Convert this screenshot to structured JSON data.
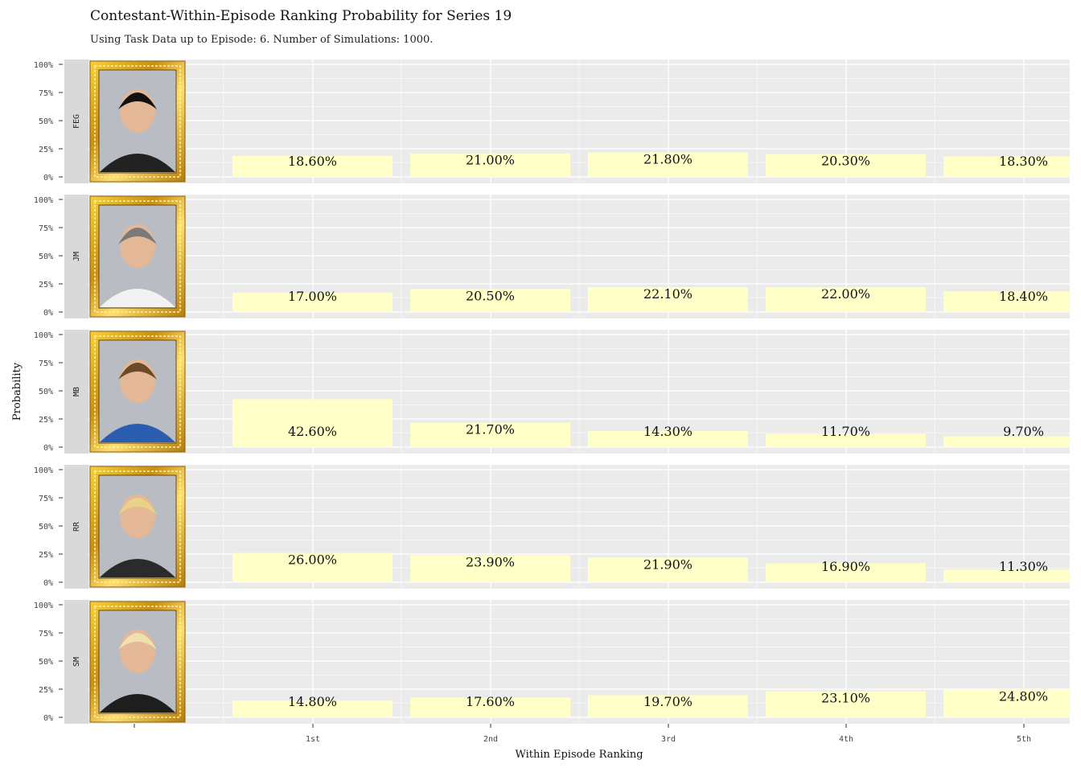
{
  "chart_data": {
    "type": "bar",
    "title": "Contestant-Within-Episode Ranking Probability for Series 19",
    "subtitle": "Using Task Data up to Episode: 6. Number of Simulations: 1000.",
    "xlabel": "Within Episode Ranking",
    "ylabel": "Probability",
    "categories": [
      "1st",
      "2nd",
      "3rd",
      "4th",
      "5th"
    ],
    "yticks": [
      "0%",
      "25%",
      "50%",
      "75%",
      "100%"
    ],
    "ylim": [
      0,
      1
    ],
    "grid": true,
    "bar_color": "#ffffc8",
    "facets": [
      {
        "name": "FEG",
        "photo": "contestant-portrait-gold-frame",
        "values": [
          0.186,
          0.21,
          0.218,
          0.203,
          0.183
        ],
        "labels": [
          "18.60%",
          "21.00%",
          "21.80%",
          "20.30%",
          "18.30%"
        ]
      },
      {
        "name": "JM",
        "photo": "contestant-portrait-gold-frame",
        "values": [
          0.17,
          0.205,
          0.221,
          0.22,
          0.184
        ],
        "labels": [
          "17.00%",
          "20.50%",
          "22.10%",
          "22.00%",
          "18.40%"
        ]
      },
      {
        "name": "MB",
        "photo": "contestant-portrait-gold-frame",
        "values": [
          0.426,
          0.217,
          0.143,
          0.117,
          0.097
        ],
        "labels": [
          "42.60%",
          "21.70%",
          "14.30%",
          "11.70%",
          "9.70%"
        ]
      },
      {
        "name": "RR",
        "photo": "contestant-portrait-gold-frame",
        "values": [
          0.26,
          0.239,
          0.219,
          0.169,
          0.113
        ],
        "labels": [
          "26.00%",
          "23.90%",
          "21.90%",
          "16.90%",
          "11.30%"
        ]
      },
      {
        "name": "SM",
        "photo": "contestant-portrait-gold-frame",
        "values": [
          0.148,
          0.176,
          0.197,
          0.231,
          0.248
        ],
        "labels": [
          "14.80%",
          "17.60%",
          "19.70%",
          "23.10%",
          "24.80%"
        ]
      }
    ]
  }
}
